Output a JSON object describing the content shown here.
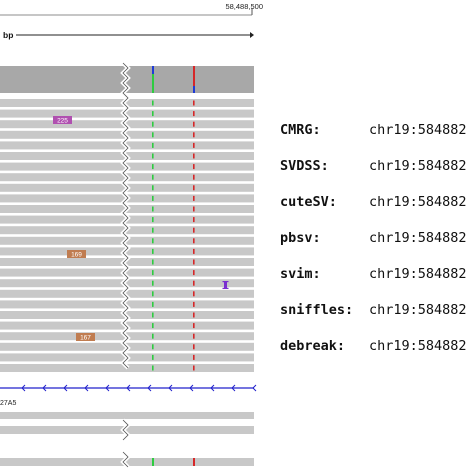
{
  "ruler": {
    "position_label": "58,488,500",
    "unit_label": "bp"
  },
  "badges": [
    "225",
    "169",
    "167"
  ],
  "gene": {
    "label": "27A5"
  },
  "colors": {
    "read": "#c8c8c8",
    "coverage": "#a8a8a8",
    "insertion_marker": "#2ecc40",
    "deletion_marker": "#d62728",
    "mismatch_blue": "#1f3bd6",
    "gene_line": "#2222cc",
    "badge_purple": "#b050b0",
    "badge_brown": "#c07c50",
    "small_insertion": "#7a2fd0"
  },
  "callers": [
    {
      "name": "CMRG:",
      "coord": "chr19:584882"
    },
    {
      "name": "SVDSS:",
      "coord": "chr19:584882"
    },
    {
      "name": "cuteSV:",
      "coord": "chr19:584882"
    },
    {
      "name": "pbsv:",
      "coord": "chr19:584882"
    },
    {
      "name": "svim:",
      "coord": "chr19:584882"
    },
    {
      "name": "sniffles:",
      "coord": "chr19:584882"
    },
    {
      "name": "debreak:",
      "coord": "chr19:584882"
    }
  ]
}
